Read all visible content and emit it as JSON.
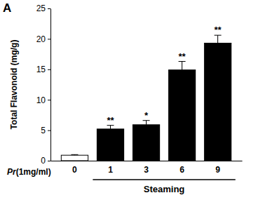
{
  "chart_data": {
    "type": "bar",
    "panel_label": "A",
    "y_label": "Total Flavonoid (mg/g)",
    "x_row_label": "Pr(1mg/ml)",
    "x_group_label": "Steaming",
    "categories": [
      "0",
      "1",
      "3",
      "6",
      "9"
    ],
    "values": [
      0.9,
      5.2,
      5.9,
      14.9,
      19.3
    ],
    "errors": [
      0.1,
      0.6,
      0.7,
      1.4,
      1.3
    ],
    "significance": [
      null,
      "**",
      "*",
      "**",
      "**"
    ],
    "colors": [
      "#ffffff",
      "#000000",
      "#000000",
      "#000000",
      "#000000"
    ],
    "ylim": [
      0,
      25
    ],
    "yticks": [
      0,
      5,
      10,
      15,
      20,
      25
    ],
    "grid": false
  }
}
